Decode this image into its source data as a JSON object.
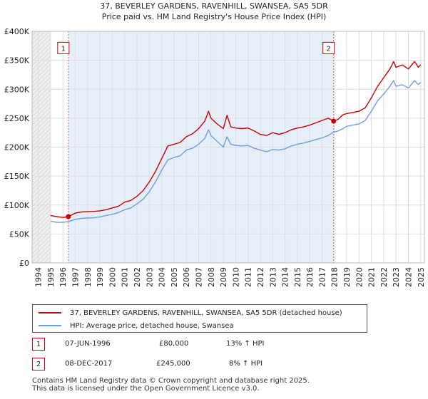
{
  "chart_data": {
    "type": "line",
    "title": "37, BEVERLEY GARDENS, RAVENHILL, SWANSEA, SA5 5DR",
    "subtitle": "Price paid vs. HM Land Registry's House Price Index (HPI)",
    "xlabel": "",
    "ylabel": "",
    "xlim": [
      1993.5,
      2025.3
    ],
    "ylim": [
      0,
      400000
    ],
    "x_ticks": [
      "1994",
      "1995",
      "1996",
      "1997",
      "1998",
      "1999",
      "2000",
      "2001",
      "2002",
      "2003",
      "2004",
      "2005",
      "2006",
      "2007",
      "2008",
      "2009",
      "2010",
      "2011",
      "2012",
      "2013",
      "2014",
      "2015",
      "2016",
      "2017",
      "2018",
      "2019",
      "2020",
      "2021",
      "2022",
      "2023",
      "2024",
      "2025"
    ],
    "y_ticks": [
      {
        "value": 0,
        "label": "£0"
      },
      {
        "value": 50000,
        "label": "£50K"
      },
      {
        "value": 100000,
        "label": "£100K"
      },
      {
        "value": 150000,
        "label": "£150K"
      },
      {
        "value": 200000,
        "label": "£200K"
      },
      {
        "value": 250000,
        "label": "£250K"
      },
      {
        "value": 300000,
        "label": "£300K"
      },
      {
        "value": 350000,
        "label": "£350K"
      },
      {
        "value": 400000,
        "label": "£400K"
      }
    ],
    "grid": true,
    "data_start": 1995.0,
    "shaded_regions": [
      [
        1993.5,
        1995.0
      ]
    ],
    "highlight_region": [
      1996.44,
      2017.94
    ],
    "series": [
      {
        "name": "37, BEVERLEY GARDENS, RAVENHILL, SWANSEA, SA5 5DR (detached house)",
        "color": "#cc0000",
        "points": [
          [
            1995.0,
            82000
          ],
          [
            1995.5,
            80000
          ],
          [
            1996.0,
            78500
          ],
          [
            1996.44,
            80000
          ],
          [
            1997.0,
            86000
          ],
          [
            1997.5,
            88000
          ],
          [
            1998.0,
            88500
          ],
          [
            1998.5,
            89000
          ],
          [
            1999.0,
            90000
          ],
          [
            1999.5,
            92000
          ],
          [
            2000.0,
            95000
          ],
          [
            2000.5,
            98000
          ],
          [
            2001.0,
            105000
          ],
          [
            2001.5,
            108000
          ],
          [
            2002.0,
            115000
          ],
          [
            2002.5,
            125000
          ],
          [
            2003.0,
            140000
          ],
          [
            2003.5,
            158000
          ],
          [
            2004.0,
            180000
          ],
          [
            2004.5,
            202000
          ],
          [
            2005.0,
            205000
          ],
          [
            2005.5,
            208000
          ],
          [
            2006.0,
            218000
          ],
          [
            2006.5,
            223000
          ],
          [
            2007.0,
            232000
          ],
          [
            2007.5,
            245000
          ],
          [
            2007.8,
            262000
          ],
          [
            2008.0,
            250000
          ],
          [
            2008.5,
            240000
          ],
          [
            2009.0,
            232000
          ],
          [
            2009.3,
            255000
          ],
          [
            2009.6,
            235000
          ],
          [
            2010.0,
            233000
          ],
          [
            2010.5,
            232000
          ],
          [
            2011.0,
            233000
          ],
          [
            2011.5,
            228000
          ],
          [
            2012.0,
            222000
          ],
          [
            2012.5,
            220000
          ],
          [
            2013.0,
            225000
          ],
          [
            2013.5,
            222000
          ],
          [
            2014.0,
            225000
          ],
          [
            2014.5,
            230000
          ],
          [
            2015.0,
            233000
          ],
          [
            2015.5,
            235000
          ],
          [
            2016.0,
            238000
          ],
          [
            2016.5,
            242000
          ],
          [
            2017.0,
            246000
          ],
          [
            2017.5,
            250000
          ],
          [
            2017.94,
            245000
          ],
          [
            2018.3,
            248000
          ],
          [
            2018.7,
            256000
          ],
          [
            2019.0,
            258000
          ],
          [
            2019.5,
            260000
          ],
          [
            2020.0,
            262000
          ],
          [
            2020.5,
            268000
          ],
          [
            2021.0,
            285000
          ],
          [
            2021.5,
            305000
          ],
          [
            2022.0,
            320000
          ],
          [
            2022.5,
            335000
          ],
          [
            2022.8,
            348000
          ],
          [
            2023.0,
            338000
          ],
          [
            2023.5,
            342000
          ],
          [
            2024.0,
            335000
          ],
          [
            2024.5,
            348000
          ],
          [
            2024.8,
            338000
          ],
          [
            2025.0,
            342000
          ]
        ]
      },
      {
        "name": "HPI: Average price, detached house, Swansea",
        "color": "#6f9fd8",
        "points": [
          [
            1995.0,
            72000
          ],
          [
            1995.5,
            70000
          ],
          [
            1996.0,
            70000
          ],
          [
            1996.44,
            71500
          ],
          [
            1997.0,
            75000
          ],
          [
            1997.5,
            77000
          ],
          [
            1998.0,
            77500
          ],
          [
            1998.5,
            78000
          ],
          [
            1999.0,
            79500
          ],
          [
            1999.5,
            82000
          ],
          [
            2000.0,
            84000
          ],
          [
            2000.5,
            87000
          ],
          [
            2001.0,
            92000
          ],
          [
            2001.5,
            95000
          ],
          [
            2002.0,
            102000
          ],
          [
            2002.5,
            110000
          ],
          [
            2003.0,
            123000
          ],
          [
            2003.5,
            140000
          ],
          [
            2004.0,
            160000
          ],
          [
            2004.5,
            178000
          ],
          [
            2005.0,
            182000
          ],
          [
            2005.5,
            185000
          ],
          [
            2006.0,
            195000
          ],
          [
            2006.5,
            198000
          ],
          [
            2007.0,
            205000
          ],
          [
            2007.5,
            215000
          ],
          [
            2007.8,
            230000
          ],
          [
            2008.0,
            220000
          ],
          [
            2008.5,
            210000
          ],
          [
            2009.0,
            200000
          ],
          [
            2009.3,
            218000
          ],
          [
            2009.6,
            205000
          ],
          [
            2010.0,
            203000
          ],
          [
            2010.5,
            202000
          ],
          [
            2011.0,
            203000
          ],
          [
            2011.5,
            198000
          ],
          [
            2012.0,
            195000
          ],
          [
            2012.5,
            192000
          ],
          [
            2013.0,
            196000
          ],
          [
            2013.5,
            195000
          ],
          [
            2014.0,
            197000
          ],
          [
            2014.5,
            202000
          ],
          [
            2015.0,
            205000
          ],
          [
            2015.5,
            207000
          ],
          [
            2016.0,
            210000
          ],
          [
            2016.5,
            213000
          ],
          [
            2017.0,
            216000
          ],
          [
            2017.5,
            220000
          ],
          [
            2017.94,
            226000
          ],
          [
            2018.3,
            228000
          ],
          [
            2018.7,
            232000
          ],
          [
            2019.0,
            236000
          ],
          [
            2019.5,
            238000
          ],
          [
            2020.0,
            240000
          ],
          [
            2020.5,
            246000
          ],
          [
            2021.0,
            262000
          ],
          [
            2021.5,
            280000
          ],
          [
            2022.0,
            292000
          ],
          [
            2022.5,
            305000
          ],
          [
            2022.8,
            315000
          ],
          [
            2023.0,
            305000
          ],
          [
            2023.5,
            308000
          ],
          [
            2024.0,
            302000
          ],
          [
            2024.5,
            315000
          ],
          [
            2024.8,
            308000
          ],
          [
            2025.0,
            312000
          ]
        ]
      }
    ],
    "annotations": [
      {
        "label": "1",
        "x": 1996.44,
        "y": 80000,
        "box_y": 370000
      },
      {
        "label": "2",
        "x": 2017.94,
        "y": 245000,
        "box_y": 370000
      }
    ]
  },
  "legend": {
    "items": [
      {
        "label": "37, BEVERLEY GARDENS, RAVENHILL, SWANSEA, SA5 5DR (detached house)",
        "color": "#cc0000"
      },
      {
        "label": "HPI: Average price, detached house, Swansea",
        "color": "#6f9fd8"
      }
    ]
  },
  "transactions": [
    {
      "num": "1",
      "date": "07-JUN-1996",
      "price": "£80,000",
      "hpi": "13% ↑ HPI"
    },
    {
      "num": "2",
      "date": "08-DEC-2017",
      "price": "£245,000",
      "hpi": "8% ↑ HPI"
    }
  ],
  "footer": {
    "line1": "Contains HM Land Registry data © Crown copyright and database right 2025.",
    "line2": "This data is licensed under the Open Government Licence v3.0."
  }
}
